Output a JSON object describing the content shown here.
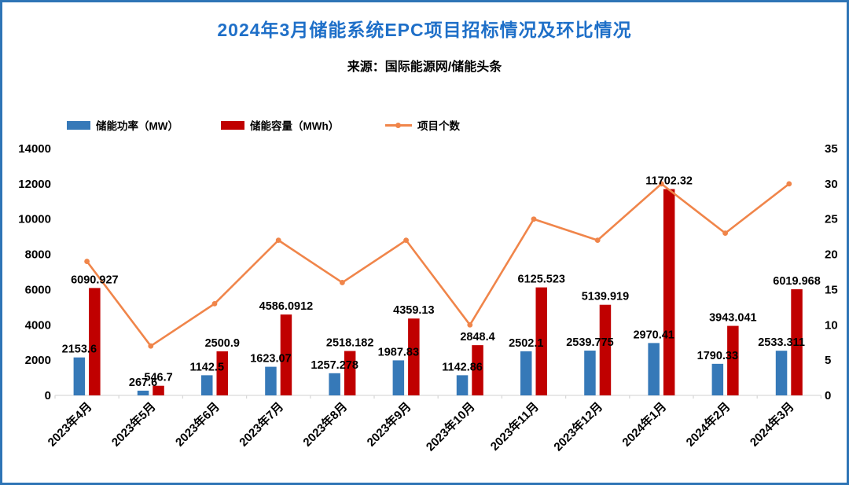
{
  "page": {
    "title": "2024年3月储能系统EPC项目招标情况及环比情况",
    "subtitle": "来源：国际能源网/储能头条"
  },
  "colors": {
    "title": "#1E6FC8",
    "border": "#2E75B6",
    "power_bar": "#3679B8",
    "capacity_bar": "#C00000",
    "projects_line": "#F0854A",
    "axis_line": "#D9D9D9",
    "label_text": "#000000"
  },
  "legend": [
    {
      "label": "储能功率（MW）",
      "type": "bar",
      "color": "#3679B8"
    },
    {
      "label": "储能容量（MWh）",
      "type": "bar",
      "color": "#C00000"
    },
    {
      "label": "项目个数",
      "type": "line",
      "color": "#F0854A"
    }
  ],
  "chart_data": {
    "type": "combo-bar-line",
    "title": "2024年3月储能系统EPC项目招标情况及环比情况",
    "categories": [
      "2023年4月",
      "2023年5月",
      "2023年6月",
      "2023年7月",
      "2023年8月",
      "2023年9月",
      "2023年10月",
      "2023年11月",
      "2023年12月",
      "2024年1月",
      "2024年2月",
      "2024年3月"
    ],
    "series": [
      {
        "name": "储能功率（MW）",
        "type": "bar",
        "axis": "left",
        "color": "#3679B8",
        "values": [
          2153.6,
          267.6,
          1142.5,
          1623.07,
          1257.278,
          1987.83,
          1142.86,
          2502.1,
          2539.775,
          2970.41,
          1790.33,
          2533.311
        ],
        "labels": [
          "2153.6",
          "267.6",
          "1142.5",
          "1623.07",
          "1257.278",
          "1987.83",
          "1142.86",
          "2502.1",
          "2539.775",
          "2970.41",
          "1790.33",
          "2533.311"
        ]
      },
      {
        "name": "储能容量（MWh）",
        "type": "bar",
        "axis": "left",
        "color": "#C00000",
        "values": [
          6090.927,
          546.7,
          2500.9,
          4586.0912,
          2518.182,
          4359.13,
          2848.4,
          6125.523,
          5139.919,
          11702.32,
          3943.041,
          6019.968
        ],
        "labels": [
          "6090.927",
          "546.7",
          "2500.9",
          "4586.0912",
          "2518.182",
          "4359.13",
          "2848.4",
          "6125.523",
          "5139.919",
          "11702.32",
          "3943.041",
          "6019.968"
        ]
      },
      {
        "name": "项目个数",
        "type": "line",
        "axis": "right",
        "color": "#F0854A",
        "values": [
          19,
          7,
          13,
          22,
          16,
          22,
          10,
          25,
          22,
          30,
          23,
          30
        ]
      }
    ],
    "left_axis": {
      "min": 0,
      "max": 14000,
      "step": 2000,
      "tick_labels": [
        "0",
        "2000",
        "4000",
        "6000",
        "8000",
        "10000",
        "12000",
        "14000"
      ]
    },
    "right_axis": {
      "min": 0,
      "max": 35,
      "step": 5,
      "tick_labels": [
        "0",
        "5",
        "10",
        "15",
        "20",
        "25",
        "30",
        "35"
      ]
    },
    "legend_position": "top-left",
    "grid": false
  }
}
